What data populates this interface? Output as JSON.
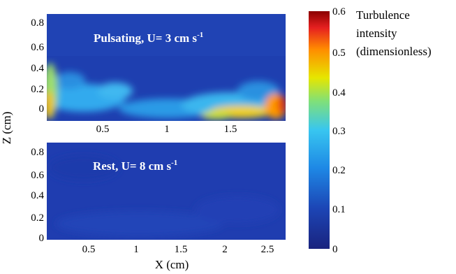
{
  "chart_data": [
    {
      "type": "heatmap",
      "panel": "top",
      "annotation": {
        "main": "Pulsating, U= 3 cm s",
        "superscript": "-1"
      },
      "xlabel": "",
      "ylabel": "Z (cm)",
      "x_ticks": [
        0.5,
        1,
        1.5
      ],
      "y_ticks": [
        0,
        0.2,
        0.4,
        0.6,
        0.8
      ],
      "xlim": [
        0.1,
        1.9
      ],
      "ylim": [
        -0.1,
        0.85
      ],
      "grid": false,
      "description_values": {
        "background_intensity": 0.07,
        "near_bed_band": [
          {
            "x": 0.12,
            "z": 0.0,
            "value": 0.45
          },
          {
            "x": 0.12,
            "z": 0.3,
            "value": 0.35
          },
          {
            "x": 0.3,
            "z": 0.05,
            "value": 0.22
          },
          {
            "x": 0.5,
            "z": 0.1,
            "value": 0.2
          },
          {
            "x": 1.0,
            "z": 0.0,
            "value": 0.2
          },
          {
            "x": 1.5,
            "z": -0.05,
            "value": 0.4
          },
          {
            "x": 1.85,
            "z": 0.0,
            "value": 0.55
          }
        ]
      }
    },
    {
      "type": "heatmap",
      "panel": "bottom",
      "annotation": {
        "main": "Rest, U= 8 cm s",
        "superscript": "-1"
      },
      "xlabel": "X (cm)",
      "ylabel": "Z (cm)",
      "x_ticks": [
        0.5,
        1,
        1.5,
        2,
        2.5
      ],
      "y_ticks": [
        0,
        0.2,
        0.4,
        0.6,
        0.8
      ],
      "xlim": [
        0.1,
        2.65
      ],
      "ylim": [
        -0.05,
        0.85
      ],
      "grid": false,
      "description_values": {
        "background_intensity": 0.06
      }
    }
  ],
  "colorbar": {
    "title_lines": [
      "Turbulence",
      "intensity",
      "(dimensionless)"
    ],
    "ticks": [
      0,
      0.1,
      0.2,
      0.3,
      0.4,
      0.5,
      0.6
    ],
    "range": [
      0,
      0.6
    ],
    "colormap": "jet"
  },
  "axis_titles": {
    "x": "X (cm)",
    "y": "Z (cm)"
  }
}
